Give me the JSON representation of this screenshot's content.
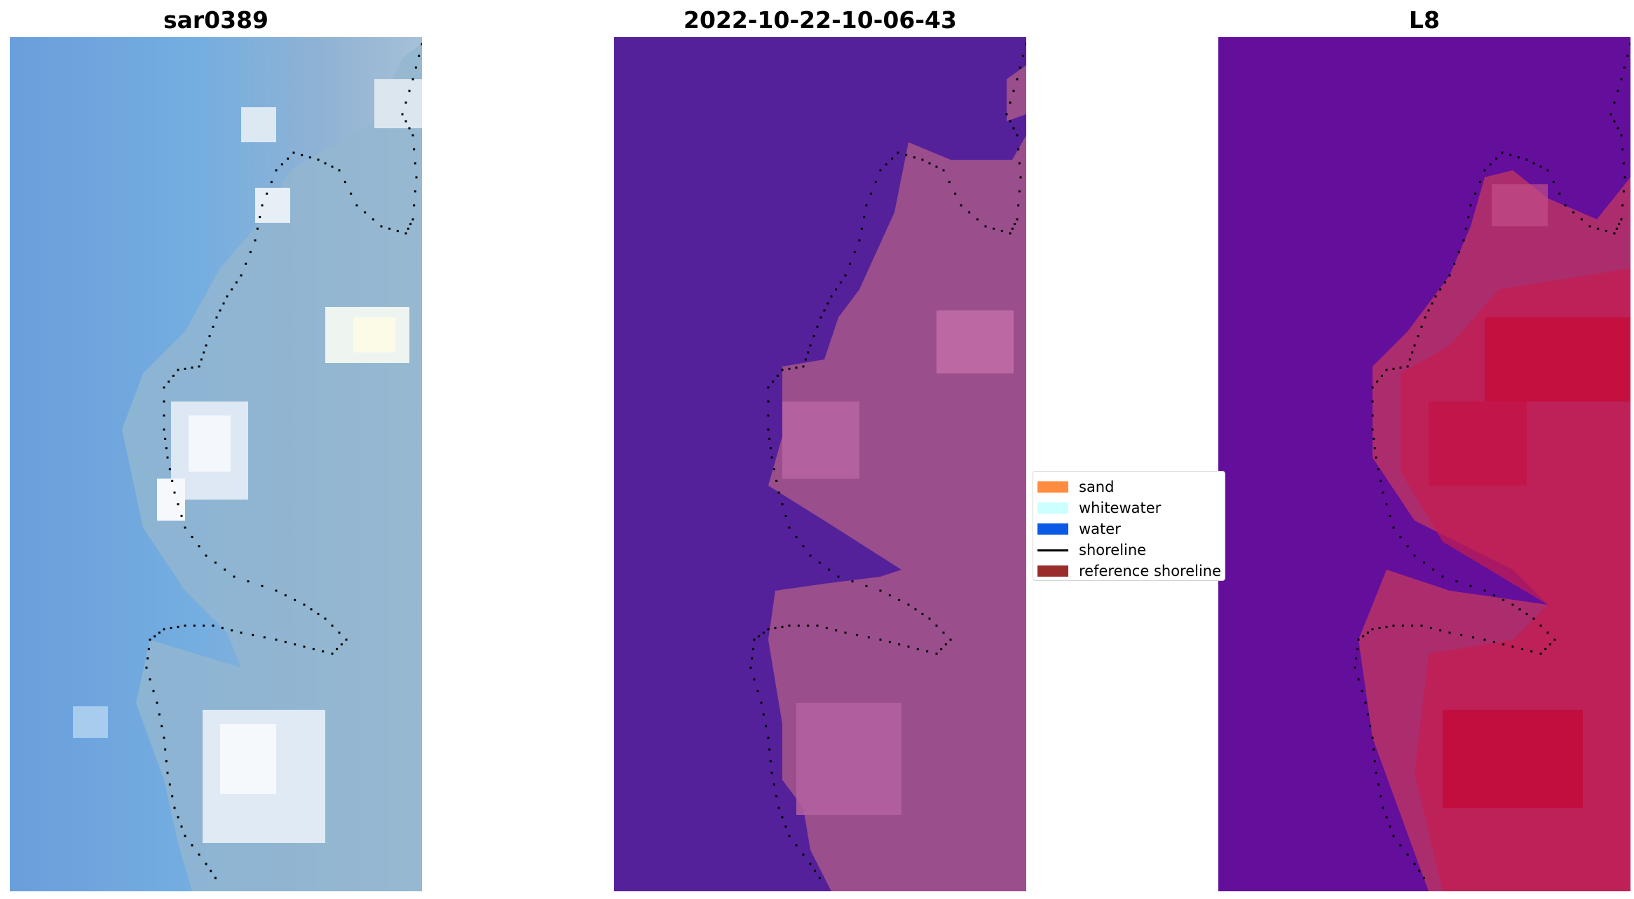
{
  "panels": [
    {
      "title": "sar0389",
      "kind": "rgb"
    },
    {
      "title": "2022-10-22-10-06-43",
      "kind": "classified"
    },
    {
      "title": "L8",
      "kind": "index"
    }
  ],
  "legend": {
    "items": [
      {
        "label": "sand",
        "type": "swatch",
        "color": "#ff8c40"
      },
      {
        "label": "whitewater",
        "type": "swatch",
        "color": "#ccffff"
      },
      {
        "label": "water",
        "type": "swatch",
        "color": "#0a5ae6"
      },
      {
        "label": "shoreline",
        "type": "line",
        "color": "#000000"
      },
      {
        "label": "reference shoreline",
        "type": "swatch",
        "color": "#9b2c2c"
      }
    ]
  },
  "colors": {
    "rgb_water": "#6ea8dc",
    "classified_water": "#55219a",
    "classified_land": "#9a4e8c",
    "index_low": "#5f0f9c",
    "index_high": "#c8103f",
    "shoreline_dots": "#000000"
  }
}
